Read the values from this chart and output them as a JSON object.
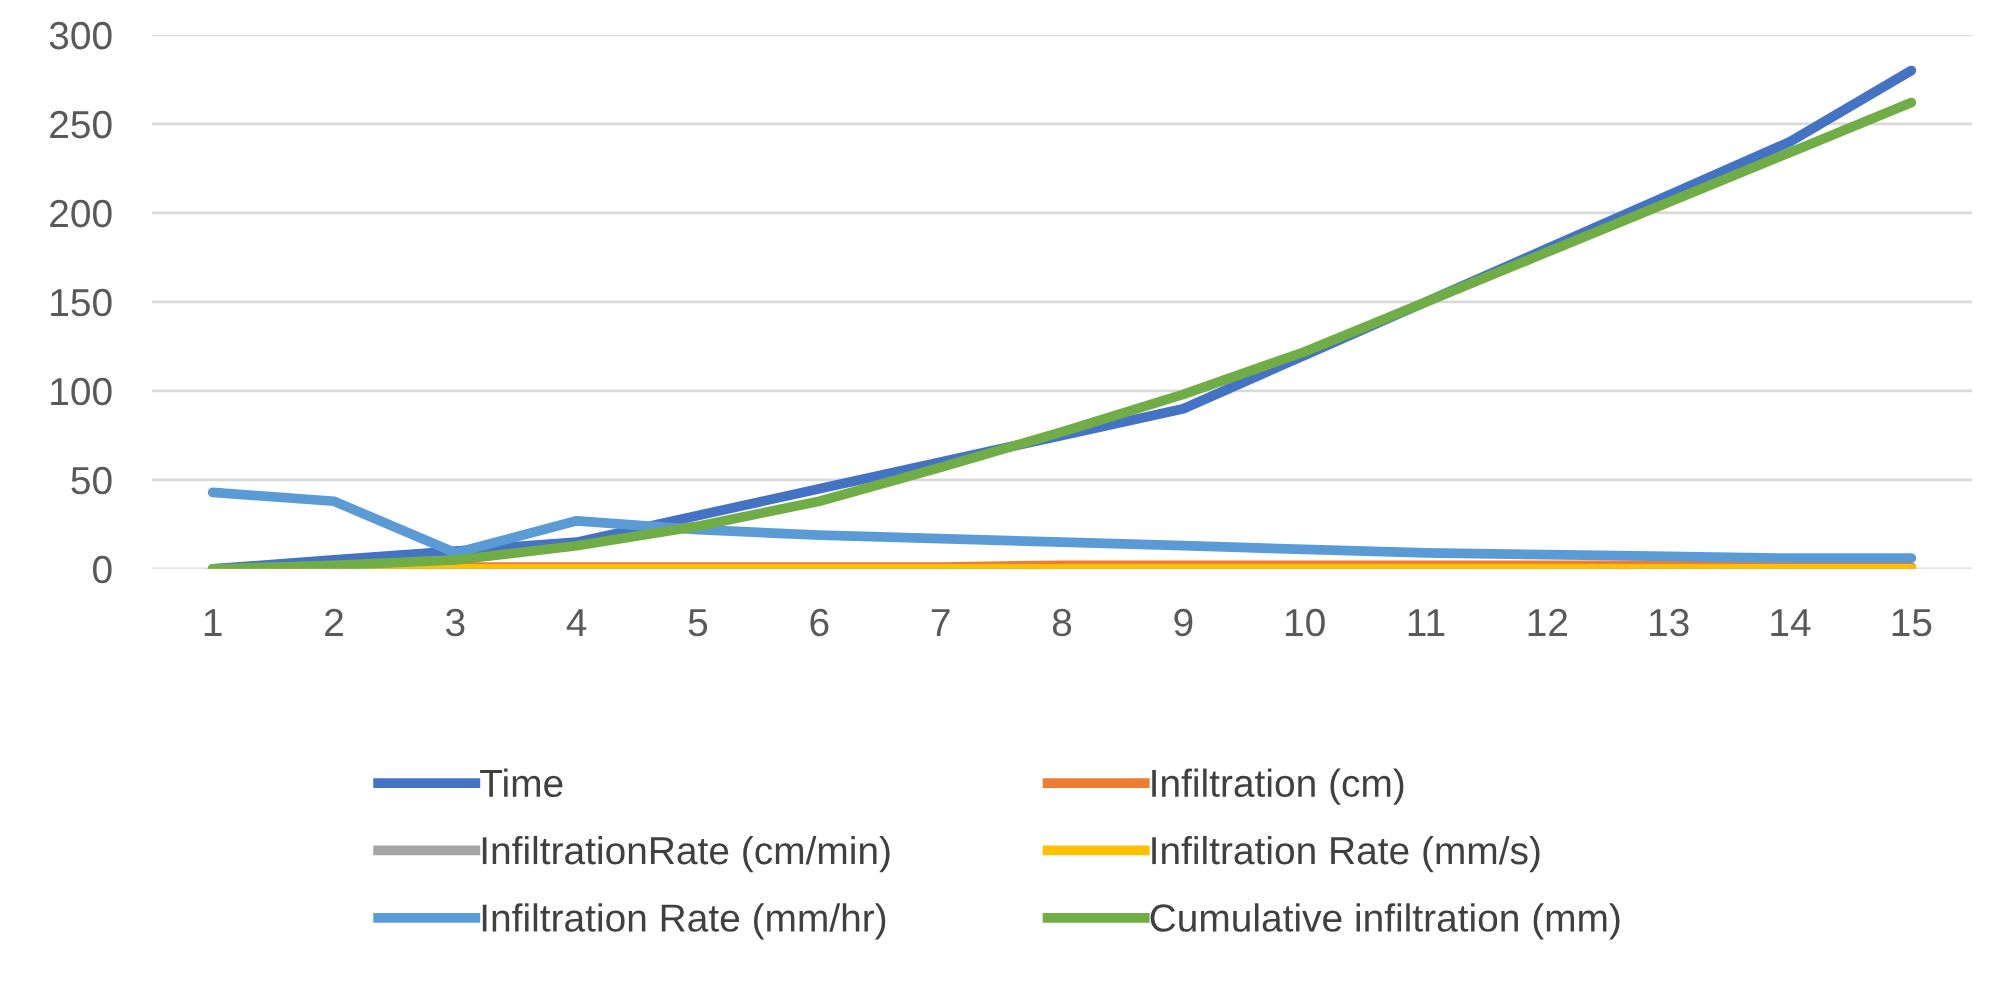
{
  "chart_data": {
    "type": "line",
    "categories": [
      "1",
      "2",
      "3",
      "4",
      "5",
      "6",
      "7",
      "8",
      "9",
      "10",
      "11",
      "12",
      "13",
      "14",
      "15"
    ],
    "series": [
      {
        "name": "Time",
        "color": "#4472c4",
        "values": [
          0,
          5,
          10,
          15,
          30,
          45,
          60,
          75,
          90,
          120,
          150,
          180,
          210,
          240,
          280
        ]
      },
      {
        "name": "Infiltration (cm)",
        "color": "#ed7d31",
        "values": [
          0,
          0,
          1,
          1,
          1,
          1,
          1,
          2,
          2,
          2,
          2,
          2,
          2,
          1,
          1
        ]
      },
      {
        "name": "InfiltrationRate (cm/min)",
        "color": "#a5a5a5",
        "values": [
          null,
          null,
          null,
          null,
          null,
          null,
          null,
          null,
          null,
          null,
          null,
          null,
          null,
          null,
          null
        ]
      },
      {
        "name": "Infiltration Rate (mm/s)",
        "color": "#ffc000",
        "values": [
          0,
          0,
          0,
          0,
          0,
          0,
          0,
          0,
          0,
          0,
          0,
          0,
          0,
          0,
          0
        ]
      },
      {
        "name": "Infiltration Rate (mm/hr)",
        "color": "#5b9bd5",
        "values": [
          43,
          38,
          9,
          27,
          22,
          19,
          17,
          15,
          13,
          11,
          9,
          8,
          7,
          6,
          6
        ]
      },
      {
        "name": "Cumulative infiltration (mm)",
        "color": "#70ad47",
        "values": [
          0,
          2,
          5,
          13,
          24,
          38,
          57,
          77,
          98,
          122,
          150,
          178,
          206,
          234,
          262
        ]
      }
    ],
    "ylim": [
      0,
      300
    ],
    "yticks": [
      0,
      50,
      100,
      150,
      200,
      250,
      300
    ],
    "grid": "y",
    "legend": "bottom",
    "marker": "none",
    "line_style": "solid"
  }
}
